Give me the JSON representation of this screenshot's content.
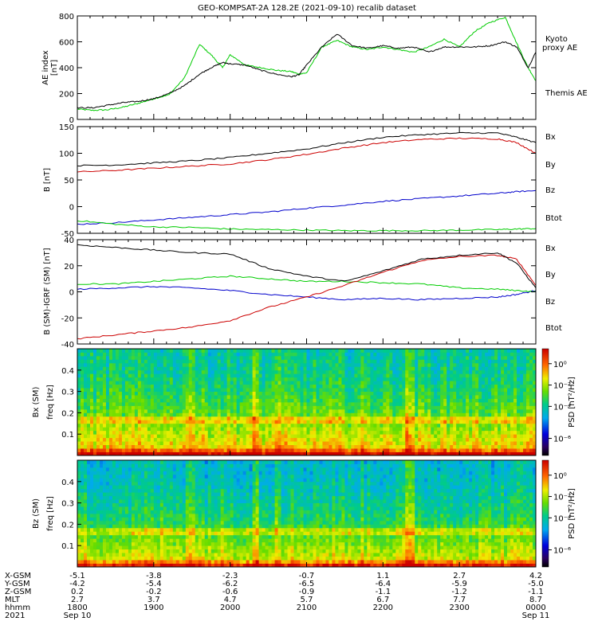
{
  "title": "GEO-KOMPSAT-2A 128.2E (2021-09-10) recalib dataset",
  "chart_data": [
    {
      "type": "line",
      "panel": "ae",
      "ylabel": "AE index",
      "yunit": "[nT]",
      "ylim": [
        0,
        800
      ],
      "yticks": [
        "0",
        "200",
        "400",
        "600",
        "800"
      ],
      "legend_placement": "right",
      "x_hours": [
        18.0,
        18.2,
        18.4,
        18.6,
        18.8,
        19.0,
        19.2,
        19.4,
        19.6,
        19.75,
        19.9,
        20.0,
        20.2,
        20.4,
        20.6,
        20.8,
        20.9,
        21.0,
        21.2,
        21.4,
        21.6,
        21.8,
        22.0,
        22.2,
        22.4,
        22.6,
        22.8,
        23.0,
        23.2,
        23.4,
        23.6,
        23.75,
        23.9,
        24.0
      ],
      "series": [
        {
          "name": "Kyoto\nproxy AE",
          "color": "#00cc00",
          "values": [
            80,
            70,
            75,
            95,
            125,
            160,
            190,
            320,
            580,
            500,
            400,
            500,
            420,
            400,
            380,
            370,
            350,
            360,
            560,
            610,
            560,
            540,
            560,
            540,
            520,
            560,
            620,
            560,
            680,
            750,
            790,
            590,
            400,
            300
          ]
        },
        {
          "name": "Themis AE",
          "color": "#000000",
          "values": [
            90,
            90,
            110,
            130,
            140,
            160,
            200,
            260,
            350,
            400,
            440,
            430,
            420,
            380,
            350,
            330,
            345,
            420,
            560,
            660,
            570,
            550,
            570,
            550,
            560,
            520,
            560,
            560,
            560,
            570,
            600,
            560,
            400,
            520
          ]
        }
      ]
    },
    {
      "type": "line",
      "panel": "b_sm",
      "ylabel": "B [nT]",
      "ylim": [
        -50,
        150
      ],
      "yticks": [
        "-50",
        "0",
        "50",
        "100",
        "150"
      ],
      "legend_placement": "right",
      "x_hours": [
        18.0,
        18.5,
        19.0,
        19.5,
        20.0,
        20.5,
        21.0,
        21.5,
        22.0,
        22.5,
        23.0,
        23.5,
        23.75,
        24.0
      ],
      "series": [
        {
          "name": "Bx",
          "color": "#0000cc",
          "values": [
            -33,
            -30,
            -25,
            -20,
            -15,
            -10,
            -3,
            3,
            10,
            15,
            20,
            25,
            28,
            30
          ]
        },
        {
          "name": "By",
          "color": "#00cc00",
          "values": [
            -26,
            -33,
            -38,
            -39,
            -42,
            -43,
            -44,
            -45,
            -45,
            -45,
            -44,
            -43,
            -42,
            -41
          ]
        },
        {
          "name": "Bz",
          "color": "#cc0000",
          "values": [
            65,
            68,
            72,
            76,
            80,
            88,
            98,
            110,
            120,
            126,
            128,
            127,
            120,
            100
          ]
        },
        {
          "name": "Btot",
          "color": "#000000",
          "values": [
            77,
            78,
            82,
            86,
            92,
            100,
            108,
            120,
            130,
            135,
            138,
            138,
            130,
            120
          ]
        }
      ]
    },
    {
      "type": "line",
      "panel": "b_igrf",
      "ylabel": "B (SM)-IGRF (SM) [nT]",
      "ylim": [
        -40,
        40
      ],
      "yticks": [
        "-40",
        "-20",
        "0",
        "20",
        "40"
      ],
      "legend_placement": "right",
      "x_hours": [
        18.0,
        18.5,
        19.0,
        19.5,
        20.0,
        20.5,
        21.0,
        21.5,
        22.0,
        22.5,
        23.0,
        23.5,
        23.75,
        24.0
      ],
      "series": [
        {
          "name": "Bx",
          "color": "#0000cc",
          "values": [
            2,
            3,
            4,
            3,
            1,
            -2,
            -4,
            -6,
            -5,
            -6,
            -5,
            -4,
            -2,
            1
          ]
        },
        {
          "name": "By",
          "color": "#00cc00",
          "values": [
            6,
            6,
            8,
            10,
            12,
            10,
            8,
            8,
            7,
            6,
            3,
            2,
            1,
            0
          ]
        },
        {
          "name": "Bz",
          "color": "#cc0000",
          "values": [
            -36,
            -33,
            -30,
            -27,
            -22,
            -12,
            -4,
            5,
            15,
            24,
            27,
            28,
            25,
            5
          ]
        },
        {
          "name": "Btot",
          "color": "#000000",
          "values": [
            36,
            34,
            32,
            30,
            29,
            18,
            12,
            8,
            16,
            25,
            28,
            30,
            22,
            3
          ]
        }
      ]
    },
    {
      "type": "heatmap",
      "panel": "spec_bx",
      "ylabel": "Bx (SM)",
      "yunit": "freq [Hz]",
      "ylim": [
        0,
        0.5
      ],
      "yticks": [
        "0.1",
        "0.2",
        "0.3",
        "0.4"
      ],
      "colorbar_label": "PSD [nT²/Hz]",
      "colorbar_ticks": [
        "10⁰",
        "10⁻²",
        "10⁻⁴",
        "10⁻⁶"
      ]
    },
    {
      "type": "heatmap",
      "panel": "spec_bz",
      "ylabel": "Bz (SM)",
      "yunit": "freq [Hz]",
      "ylim": [
        0,
        0.5
      ],
      "yticks": [
        "0.1",
        "0.2",
        "0.3",
        "0.4"
      ],
      "colorbar_label": "PSD [nT²/Hz]",
      "colorbar_ticks": [
        "10⁰",
        "10⁻²",
        "10⁻⁴",
        "10⁻⁶"
      ]
    }
  ],
  "ephemeris": {
    "row_labels": [
      "X-GSM",
      "Y-GSM",
      "Z-GSM",
      "MLT",
      "hhmm",
      "2021"
    ],
    "columns": [
      {
        "x_hours": 18.0,
        "values": [
          "-5.1",
          "-4.2",
          "0.2",
          "2.7",
          "1800",
          "Sep 10"
        ]
      },
      {
        "x_hours": 19.0,
        "values": [
          "-3.8",
          "-5.4",
          "-0.2",
          "3.7",
          "1900",
          ""
        ]
      },
      {
        "x_hours": 20.0,
        "values": [
          "-2.3",
          "-6.2",
          "-0.6",
          "4.7",
          "2000",
          ""
        ]
      },
      {
        "x_hours": 21.0,
        "values": [
          "-0.7",
          "-6.5",
          "-0.9",
          "5.7",
          "2100",
          ""
        ]
      },
      {
        "x_hours": 22.0,
        "values": [
          "1.1",
          "-6.4",
          "-1.1",
          "6.7",
          "2200",
          ""
        ]
      },
      {
        "x_hours": 23.0,
        "values": [
          "2.7",
          "-5.9",
          "-1.2",
          "7.7",
          "2300",
          ""
        ]
      },
      {
        "x_hours": 24.0,
        "values": [
          "4.2",
          "-5.0",
          "-1.1",
          "8.7",
          "0000",
          "Sep 11"
        ]
      }
    ]
  }
}
